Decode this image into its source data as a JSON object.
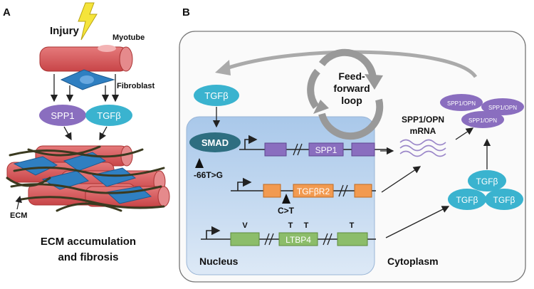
{
  "panel_a": {
    "label": "A",
    "injury": "Injury",
    "myotube": "Myotube",
    "fibroblast": "Fibroblast",
    "spp1": "SPP1",
    "tgfb": "TGFβ",
    "ecm": "ECM",
    "caption_line1": "ECM accumulation",
    "caption_line2": "and fibrosis"
  },
  "panel_b": {
    "label": "B",
    "tgfb_top": "TGFβ",
    "loop_line1": "Feed-",
    "loop_line2": "forward",
    "loop_line3": "loop",
    "smad": "SMAD",
    "variant_spp1": "-66T>G",
    "gene_spp1": "SPP1",
    "gene_tgfbr2": "TGFβR2",
    "variant_tgfbr2": "C>T",
    "gene_ltbp4": "LTBP4",
    "ltbp4_variants": [
      "V",
      "T",
      "T",
      "T"
    ],
    "mrna_line1": "SPP1/OPN",
    "mrna_line2": "mRNA",
    "opn_proteins": [
      "SPP1/OPN",
      "SPP1/OPN",
      "SPP1/OPN"
    ],
    "tgfb_cluster": [
      "TGFβ",
      "TGFβ",
      "TGFβ"
    ],
    "nucleus": "Nucleus",
    "cytoplasm": "Cytoplasm"
  },
  "colors": {
    "muscle": "#d9585a",
    "fibroblast": "#2f7fc1",
    "spp1": "#8a6ebf",
    "tgfb": "#3ab3cf",
    "smad": "#2e6e80",
    "nucleus": "#c6daf0",
    "exon_purple": "#8a6ebf",
    "exon_orange": "#f29a50",
    "exon_green": "#8cbd6a"
  }
}
